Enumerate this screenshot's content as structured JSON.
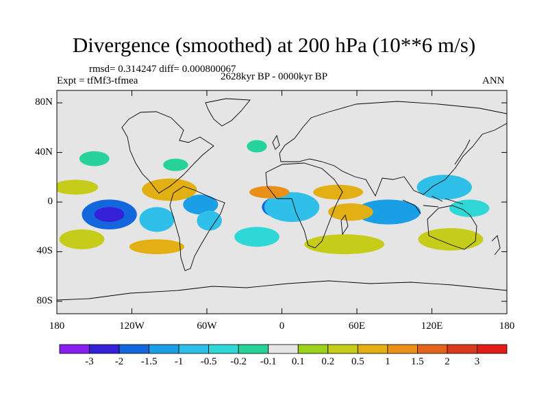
{
  "chart_data": {
    "type": "heatmap",
    "title": "Divergence (smoothed) at 200 hPa (10**6 m/s)",
    "stats_text": "rmsd= 0.314247 diff= 0.000800067",
    "experiment_text": "Expt = tfMf3-tfmea",
    "period_text": "2628kyr BP - 0000kyr BP",
    "season_text": "ANN",
    "x_range": [
      -180,
      180
    ],
    "y_range": [
      -90,
      90
    ],
    "x_ticks": [
      {
        "value": -180,
        "label": "180"
      },
      {
        "value": -120,
        "label": "120W"
      },
      {
        "value": -60,
        "label": "60W"
      },
      {
        "value": 0,
        "label": "0"
      },
      {
        "value": 60,
        "label": "60E"
      },
      {
        "value": 120,
        "label": "120E"
      },
      {
        "value": 180,
        "label": "180"
      }
    ],
    "y_ticks": [
      {
        "value": 80,
        "label": "80N"
      },
      {
        "value": 40,
        "label": "40N"
      },
      {
        "value": 0,
        "label": "0"
      },
      {
        "value": -40,
        "label": "40S"
      },
      {
        "value": -80,
        "label": "80S"
      }
    ],
    "colorbar": {
      "labels": [
        "-3",
        "-2",
        "-1.5",
        "-1",
        "-0.5",
        "-0.2",
        "-0.1",
        "0.1",
        "0.2",
        "0.5",
        "1",
        "1.5",
        "2",
        "3"
      ],
      "colors": [
        "#8a1ef0",
        "#3420d6",
        "#1466dc",
        "#1a9ee6",
        "#30bfe8",
        "#2fd8d6",
        "#27d39a",
        "#e5e5e5",
        "#9ad21c",
        "#c6cc1a",
        "#e2b014",
        "#e8901a",
        "#e2641c",
        "#d83a1c",
        "#e01c14"
      ]
    },
    "background_color": "#e5e5e5",
    "features": [
      {
        "lon": -138,
        "lat": -10,
        "rx": 22,
        "ry": 12,
        "level": 2
      },
      {
        "lon": -138,
        "lat": -10,
        "rx": 12,
        "ry": 6,
        "level": 1
      },
      {
        "lon": -100,
        "lat": -14,
        "rx": 14,
        "ry": 10,
        "level": 4
      },
      {
        "lon": -65,
        "lat": -2,
        "rx": 14,
        "ry": 8,
        "level": 3
      },
      {
        "lon": -58,
        "lat": -15,
        "rx": 10,
        "ry": 8,
        "level": 4
      },
      {
        "lon": 0,
        "lat": -4,
        "rx": 16,
        "ry": 9,
        "level": 2
      },
      {
        "lon": 8,
        "lat": -4,
        "rx": 22,
        "ry": 12,
        "level": 4
      },
      {
        "lon": 85,
        "lat": -8,
        "rx": 26,
        "ry": 10,
        "level": 3
      },
      {
        "lon": 130,
        "lat": 12,
        "rx": 22,
        "ry": 10,
        "level": 4
      },
      {
        "lon": 150,
        "lat": -5,
        "rx": 16,
        "ry": 7,
        "level": 5
      },
      {
        "lon": -20,
        "lat": -28,
        "rx": 18,
        "ry": 8,
        "level": 5
      },
      {
        "lon": -150,
        "lat": 35,
        "rx": 12,
        "ry": 6,
        "level": 6
      },
      {
        "lon": -85,
        "lat": 30,
        "rx": 10,
        "ry": 5,
        "level": 6
      },
      {
        "lon": -20,
        "lat": 45,
        "rx": 8,
        "ry": 5,
        "level": 6
      },
      {
        "lon": -90,
        "lat": 10,
        "rx": 22,
        "ry": 9,
        "level": 10
      },
      {
        "lon": -165,
        "lat": 12,
        "rx": 18,
        "ry": 6,
        "level": 9
      },
      {
        "lon": -10,
        "lat": 8,
        "rx": 16,
        "ry": 5,
        "level": 11
      },
      {
        "lon": 45,
        "lat": 8,
        "rx": 20,
        "ry": 6,
        "level": 10
      },
      {
        "lon": 55,
        "lat": -8,
        "rx": 18,
        "ry": 7,
        "level": 10
      },
      {
        "lon": -160,
        "lat": -30,
        "rx": 18,
        "ry": 8,
        "level": 9
      },
      {
        "lon": -100,
        "lat": -36,
        "rx": 22,
        "ry": 6,
        "level": 10
      },
      {
        "lon": 50,
        "lat": -34,
        "rx": 32,
        "ry": 8,
        "level": 9
      },
      {
        "lon": 135,
        "lat": -30,
        "rx": 26,
        "ry": 9,
        "level": 9
      }
    ]
  }
}
